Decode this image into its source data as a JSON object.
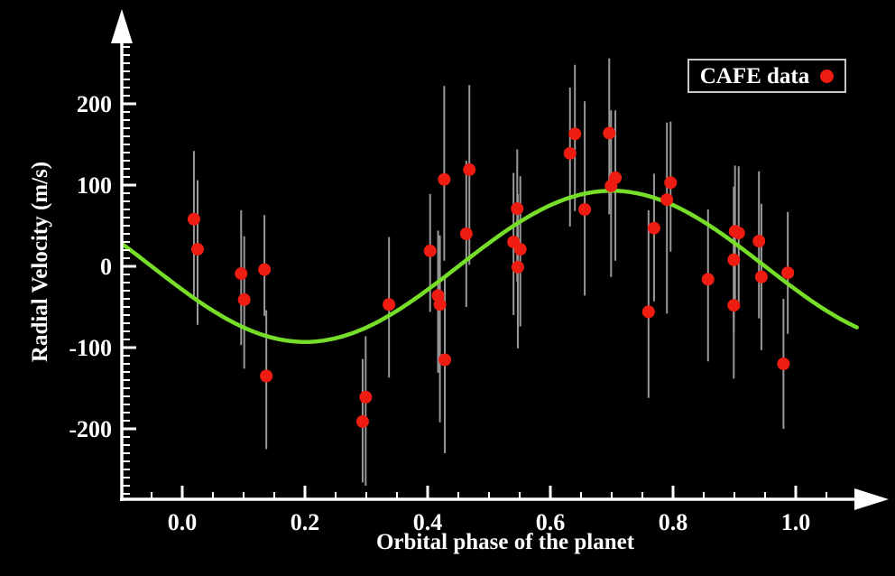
{
  "chart_data": {
    "type": "scatter",
    "title": "",
    "legend": {
      "label": "CAFE data",
      "position": "top-right",
      "marker": "red-circle"
    },
    "x_axis": {
      "label": "Orbital phase of the planet",
      "range": [
        -0.1,
        1.14
      ],
      "major_ticks": [
        {
          "value": 0.0,
          "label": "0.0"
        },
        {
          "value": 0.2,
          "label": "0.2"
        },
        {
          "value": 0.4,
          "label": "0.4"
        },
        {
          "value": 0.6,
          "label": "0.6"
        },
        {
          "value": 0.8,
          "label": "0.8"
        },
        {
          "value": 1.0,
          "label": "1.0"
        }
      ],
      "minor_tick_step": 0.05,
      "minor_tick_range": [
        -0.05,
        1.05
      ]
    },
    "y_axis": {
      "label": "Radial Velocity (m/s)",
      "range": [
        -285,
        290
      ],
      "major_ticks": [
        {
          "value": 200,
          "label": "200"
        },
        {
          "value": 100,
          "label": "100"
        },
        {
          "value": 0,
          "label": "0"
        },
        {
          "value": -100,
          "label": "-100"
        },
        {
          "value": -200,
          "label": "-200"
        }
      ],
      "minor_tick_step": 10,
      "minor_tick_range": [
        -280,
        270
      ]
    },
    "model_curve": {
      "shape": "sinusoid",
      "amplitude_ms": 93,
      "ascending_zero_phase": 0.45,
      "phase_start": -0.0955,
      "phase_end": 1.103
    },
    "series": [
      {
        "name": "CAFE data",
        "marker": "circle",
        "points": [
          {
            "phase": 0.019,
            "rv": 58,
            "err_up": 84,
            "err_down": 97
          },
          {
            "phase": 0.025,
            "rv": 21,
            "err_up": 85,
            "err_down": 93
          },
          {
            "phase": 0.096,
            "rv": -9,
            "err_up": 78,
            "err_down": 88
          },
          {
            "phase": 0.101,
            "rv": -41,
            "err_up": 78,
            "err_down": 85
          },
          {
            "phase": 0.134,
            "rv": -4,
            "err_up": 67,
            "err_down": 57
          },
          {
            "phase": 0.137,
            "rv": -135,
            "err_up": 81,
            "err_down": 90
          },
          {
            "phase": 0.294,
            "rv": -191,
            "err_up": 77,
            "err_down": 75
          },
          {
            "phase": 0.299,
            "rv": -161,
            "err_up": 75,
            "err_down": 109
          },
          {
            "phase": 0.337,
            "rv": -47,
            "err_up": 83,
            "err_down": 90
          },
          {
            "phase": 0.404,
            "rv": 19,
            "err_up": 70,
            "err_down": 75
          },
          {
            "phase": 0.417,
            "rv": -36,
            "err_up": 80,
            "err_down": 95
          },
          {
            "phase": 0.42,
            "rv": -47,
            "err_up": 85,
            "err_down": 145
          },
          {
            "phase": 0.427,
            "rv": 107,
            "err_up": 115,
            "err_down": 100
          },
          {
            "phase": 0.428,
            "rv": -115,
            "err_up": 100,
            "err_down": 115
          },
          {
            "phase": 0.463,
            "rv": 40,
            "err_up": 90,
            "err_down": 90
          },
          {
            "phase": 0.468,
            "rv": 119,
            "err_up": 104,
            "err_down": 117
          },
          {
            "phase": 0.54,
            "rv": 30,
            "err_up": 85,
            "err_down": 90
          },
          {
            "phase": 0.546,
            "rv": 71,
            "err_up": 73,
            "err_down": 90
          },
          {
            "phase": 0.551,
            "rv": 21,
            "err_up": 90,
            "err_down": 95
          },
          {
            "phase": 0.547,
            "rv": -1,
            "err_up": 90,
            "err_down": 100
          },
          {
            "phase": 0.632,
            "rv": 139,
            "err_up": 81,
            "err_down": 90
          },
          {
            "phase": 0.64,
            "rv": 163,
            "err_up": 85,
            "err_down": 95
          },
          {
            "phase": 0.656,
            "rv": 70,
            "err_up": 133,
            "err_down": 106
          },
          {
            "phase": 0.696,
            "rv": 164,
            "err_up": 92,
            "err_down": 100
          },
          {
            "phase": 0.699,
            "rv": 99,
            "err_up": 93,
            "err_down": 112
          },
          {
            "phase": 0.706,
            "rv": 109,
            "err_up": 83,
            "err_down": 102
          },
          {
            "phase": 0.76,
            "rv": -56,
            "err_up": 125,
            "err_down": 106
          },
          {
            "phase": 0.769,
            "rv": 47,
            "err_up": 67,
            "err_down": 90
          },
          {
            "phase": 0.79,
            "rv": 82,
            "err_up": 95,
            "err_down": 140
          },
          {
            "phase": 0.796,
            "rv": 103,
            "err_up": 75,
            "err_down": 85
          },
          {
            "phase": 0.857,
            "rv": -16,
            "err_up": 86,
            "err_down": 101
          },
          {
            "phase": 0.899,
            "rv": 8,
            "err_up": 90,
            "err_down": 90
          },
          {
            "phase": 0.899,
            "rv": -48,
            "err_up": 90,
            "err_down": 90
          },
          {
            "phase": 0.901,
            "rv": 43,
            "err_up": 81,
            "err_down": 90
          },
          {
            "phase": 0.907,
            "rv": 41,
            "err_up": 82,
            "err_down": 90
          },
          {
            "phase": 0.94,
            "rv": 31,
            "err_up": 86,
            "err_down": 95
          },
          {
            "phase": 0.944,
            "rv": -13,
            "err_up": 90,
            "err_down": 90
          },
          {
            "phase": 0.98,
            "rv": -120,
            "err_up": 80,
            "err_down": 80
          },
          {
            "phase": 0.987,
            "rv": -8,
            "err_up": 75,
            "err_down": 75
          }
        ]
      }
    ],
    "colors": {
      "background": "#000000",
      "axis": "#ffffff",
      "curve": "#76de28",
      "point": "#ef1c11",
      "error_bar": "#999999",
      "legend_border": "#c8c8c8",
      "text": "#ffffff"
    }
  }
}
